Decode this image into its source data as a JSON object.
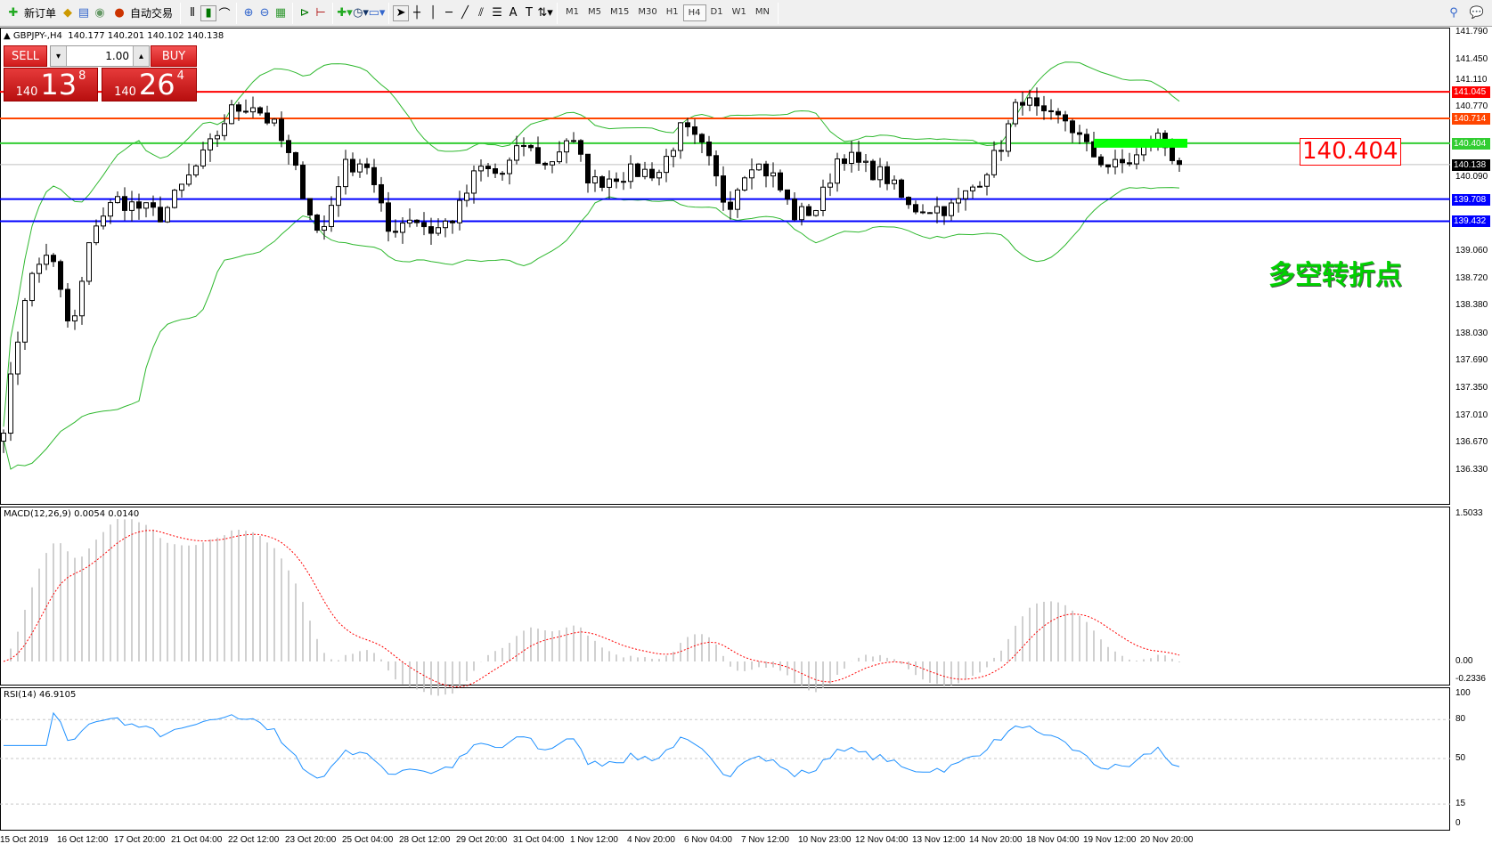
{
  "toolbar": {
    "new_order": "新订单",
    "auto_trade": "自动交易",
    "icons": [
      "new-order-icon",
      "navigator-icon",
      "market-watch-icon",
      "signals-icon",
      "autotrading-icon",
      "bar-chart-icon",
      "candlestick-icon",
      "line-chart-icon",
      "zoom-in-icon",
      "zoom-out-icon",
      "tile-windows-icon",
      "auto-scroll-icon",
      "chart-shift-icon",
      "indicators-icon",
      "periods-icon",
      "templates-icon",
      "cursor-icon",
      "crosshair-icon",
      "vertical-line-icon",
      "horizontal-line-icon",
      "trendline-icon",
      "equidistant-channel-icon",
      "fibonacci-icon",
      "text-icon",
      "text-label-icon",
      "arrows-icon"
    ],
    "timeframes": [
      "M1",
      "M5",
      "M15",
      "M30",
      "H1",
      "H4",
      "D1",
      "W1",
      "MN"
    ],
    "active_timeframe": "H4",
    "right_icons": [
      "search-icon",
      "chat-icon"
    ]
  },
  "header": {
    "symbol": "GBPJPY-,H4",
    "ohlc": "140.177 140.201 140.102 140.138"
  },
  "trade_panel": {
    "sell": "SELL",
    "buy": "BUY",
    "lots": "1.00",
    "sell_small": "140",
    "sell_big": "13",
    "sell_tiny": "8",
    "buy_small": "140",
    "buy_big": "26",
    "buy_tiny": "4"
  },
  "lines": [
    {
      "price": "141.045",
      "color": "#ff0000"
    },
    {
      "price": "140.714",
      "color": "#ff4500"
    },
    {
      "price": "140.404",
      "color": "#32cd32"
    },
    {
      "price": "140.138",
      "color": "#c0c0c0",
      "badge": "#000000"
    },
    {
      "price": "139.708",
      "color": "#0000ff"
    },
    {
      "price": "139.432",
      "color": "#0000ff"
    }
  ],
  "annotation": {
    "price_label": "140.404",
    "text": "多空转折点",
    "text_color": "#00d000",
    "label_color": "#ff0000"
  },
  "price_axis": [
    "141.790",
    "141.450",
    "141.110",
    "140.770",
    "140.090",
    "139.060",
    "138.720",
    "138.380",
    "138.030",
    "137.690",
    "137.350",
    "137.010",
    "136.670",
    "136.330"
  ],
  "macd": {
    "label": "MACD(12,26,9) 0.0054 0.0140",
    "axis": [
      "1.5033",
      "0.00",
      "-0.2336"
    ]
  },
  "rsi": {
    "label": "RSI(14) 46.9105",
    "axis": [
      "100",
      "80",
      "50",
      "15",
      "0"
    ]
  },
  "time_axis": [
    "15 Oct 2019",
    "16 Oct 12:00",
    "17 Oct 20:00",
    "21 Oct 04:00",
    "22 Oct 12:00",
    "23 Oct 20:00",
    "25 Oct 04:00",
    "28 Oct 12:00",
    "29 Oct 20:00",
    "31 Oct 04:00",
    "1 Nov 12:00",
    "4 Nov 20:00",
    "6 Nov 04:00",
    "7 Nov 12:00",
    "10 Nov 23:00",
    "12 Nov 04:00",
    "13 Nov 12:00",
    "14 Nov 20:00",
    "18 Nov 04:00",
    "19 Nov 12:00",
    "20 Nov 20:00"
  ],
  "chart_data": {
    "type": "candlestick",
    "symbol": "GBPJPY",
    "timeframe": "H4",
    "price_range": [
      136.33,
      141.79
    ],
    "close_path": [
      136.9,
      138.6,
      139.1,
      138.0,
      139.4,
      139.7,
      139.6,
      139.5,
      139.9,
      140.3,
      140.8,
      140.9,
      140.6,
      140.0,
      139.2,
      140.1,
      140.2,
      139.3,
      139.5,
      139.3,
      139.5,
      140.1,
      140.0,
      140.4,
      140.1,
      140.5,
      139.9,
      140.0,
      140.05,
      140.05,
      140.6,
      140.3,
      139.6,
      140.2,
      140.0,
      139.5,
      139.6,
      140.3,
      140.1,
      140.0,
      139.6,
      139.6,
      139.6,
      139.9,
      140.3,
      141.0,
      140.7,
      140.7,
      140.3,
      140.1,
      140.2,
      140.5,
      140.14
    ],
    "indicators": [
      "Bollinger Bands",
      "MACD(12,26,9)",
      "RSI(14)"
    ],
    "colors": {
      "bands": "#2eb82e",
      "macd_hist": "#c0c0c0",
      "macd_signal": "#ff0000",
      "rsi": "#1e90ff"
    }
  }
}
